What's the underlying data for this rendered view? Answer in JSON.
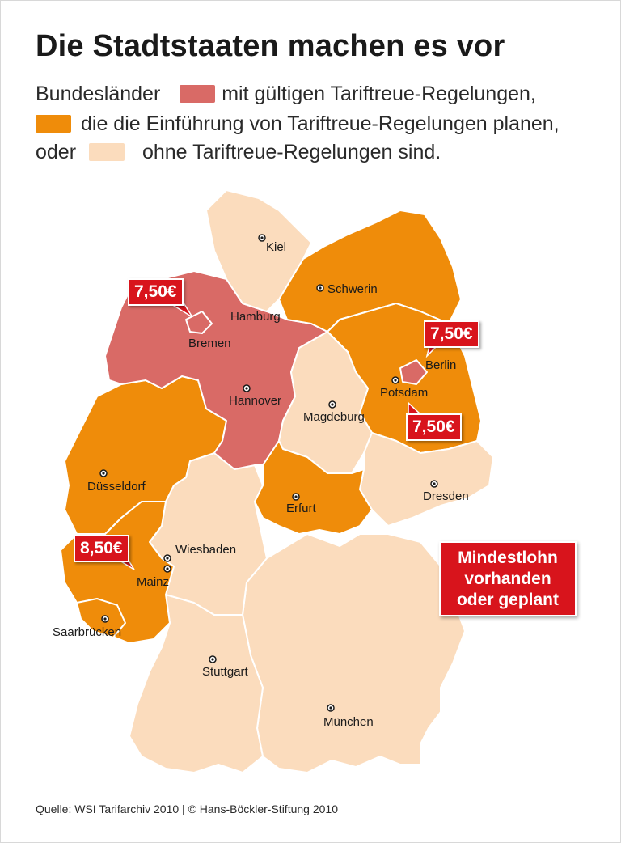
{
  "title": "Die Stadtstaaten machen es vor",
  "legend": {
    "line1_before": "Bundesländer",
    "line1_after": "mit gültigen Tariftreue-Regelungen,",
    "line2": "die die Einführung von Tariftreue-Regelungen planen,",
    "line3_before": "oder",
    "line3_after": "ohne Tariftreue-Regelungen sind.",
    "colors": {
      "valid": "#d96a66",
      "planned": "#ef8c0a",
      "none": "#fbdcbd"
    }
  },
  "cities": {
    "kiel": "Kiel",
    "schwerin": "Schwerin",
    "hamburg": "Hamburg",
    "bremen": "Bremen",
    "berlin": "Berlin",
    "potsdam": "Potsdam",
    "hannover": "Hannover",
    "magdeburg": "Magdeburg",
    "duesseldorf": "Düsseldorf",
    "dresden": "Dresden",
    "erfurt": "Erfurt",
    "wiesbaden": "Wiesbaden",
    "mainz": "Mainz",
    "saarbruecken": "Saarbrücken",
    "stuttgart": "Stuttgart",
    "muenchen": "München"
  },
  "prices": {
    "bremen": "7,50€",
    "berlin": "7,50€",
    "brandenburg": "7,50€",
    "rheinland_pfalz": "8,50€"
  },
  "mindestlohn": {
    "line1": "Mindestlohn",
    "line2": "vorhanden",
    "line3": "oder geplant"
  },
  "source": "Quelle: WSI Tarifarchiv 2010 | © Hans-Böckler-Stiftung 2010"
}
